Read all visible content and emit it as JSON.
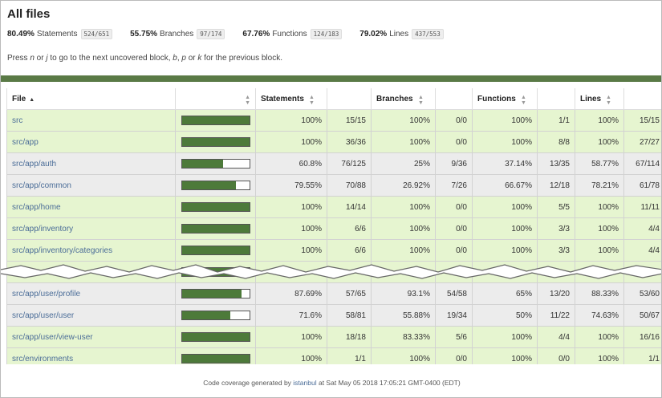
{
  "title": "All files",
  "summary": [
    {
      "pct": "80.49%",
      "label": "Statements",
      "fraction": "524/651"
    },
    {
      "pct": "55.75%",
      "label": "Branches",
      "fraction": "97/174"
    },
    {
      "pct": "67.76%",
      "label": "Functions",
      "fraction": "124/183"
    },
    {
      "pct": "79.02%",
      "label": "Lines",
      "fraction": "437/553"
    }
  ],
  "help": {
    "p1": "Press ",
    "k1": "n",
    "p2": " or ",
    "k2": "j",
    "p3": " to go to the next uncovered block, ",
    "k3": "b",
    "p4": ", ",
    "k4": "p",
    "p5": " or ",
    "k5": "k",
    "p6": " for the previous block."
  },
  "columns": {
    "file": "File",
    "statements": "Statements",
    "branches": "Branches",
    "functions": "Functions",
    "lines": "Lines"
  },
  "rows": [
    {
      "file": "src",
      "level": "high",
      "coverage": 1.0,
      "stmt_pct": "100%",
      "stmt_frac": "15/15",
      "br_pct": "100%",
      "br_frac": "0/0",
      "fn_pct": "100%",
      "fn_frac": "1/1",
      "ln_pct": "100%",
      "ln_frac": "15/15"
    },
    {
      "file": "src/app",
      "level": "high",
      "coverage": 1.0,
      "stmt_pct": "100%",
      "stmt_frac": "36/36",
      "br_pct": "100%",
      "br_frac": "0/0",
      "fn_pct": "100%",
      "fn_frac": "8/8",
      "ln_pct": "100%",
      "ln_frac": "27/27"
    },
    {
      "file": "src/app/auth",
      "level": "medium",
      "coverage": 0.608,
      "stmt_pct": "60.8%",
      "stmt_frac": "76/125",
      "br_pct": "25%",
      "br_frac": "9/36",
      "fn_pct": "37.14%",
      "fn_frac": "13/35",
      "ln_pct": "58.77%",
      "ln_frac": "67/114"
    },
    {
      "file": "src/app/common",
      "level": "medium",
      "coverage": 0.7955,
      "stmt_pct": "79.55%",
      "stmt_frac": "70/88",
      "br_pct": "26.92%",
      "br_frac": "7/26",
      "fn_pct": "66.67%",
      "fn_frac": "12/18",
      "ln_pct": "78.21%",
      "ln_frac": "61/78"
    },
    {
      "file": "src/app/home",
      "level": "high",
      "coverage": 1.0,
      "stmt_pct": "100%",
      "stmt_frac": "14/14",
      "br_pct": "100%",
      "br_frac": "0/0",
      "fn_pct": "100%",
      "fn_frac": "5/5",
      "ln_pct": "100%",
      "ln_frac": "11/11"
    },
    {
      "file": "src/app/inventory",
      "level": "high",
      "coverage": 1.0,
      "stmt_pct": "100%",
      "stmt_frac": "6/6",
      "br_pct": "100%",
      "br_frac": "0/0",
      "fn_pct": "100%",
      "fn_frac": "3/3",
      "ln_pct": "100%",
      "ln_frac": "4/4"
    },
    {
      "file": "src/app/inventory/categories",
      "level": "high",
      "coverage": 1.0,
      "stmt_pct": "100%",
      "stmt_frac": "6/6",
      "br_pct": "100%",
      "br_frac": "0/0",
      "fn_pct": "100%",
      "fn_frac": "3/3",
      "ln_pct": "100%",
      "ln_frac": "4/4"
    },
    {
      "file": "",
      "level": "high",
      "coverage": 1.0,
      "stmt_pct": "",
      "stmt_frac": "",
      "br_pct": "",
      "br_frac": "",
      "fn_pct": "",
      "fn_frac": "",
      "ln_pct": "",
      "ln_frac": ""
    },
    {
      "file": "src/app/user/profile",
      "level": "medium",
      "coverage": 0.8769,
      "stmt_pct": "87.69%",
      "stmt_frac": "57/65",
      "br_pct": "93.1%",
      "br_frac": "54/58",
      "fn_pct": "65%",
      "fn_frac": "13/20",
      "ln_pct": "88.33%",
      "ln_frac": "53/60"
    },
    {
      "file": "src/app/user/user",
      "level": "medium",
      "coverage": 0.716,
      "stmt_pct": "71.6%",
      "stmt_frac": "58/81",
      "br_pct": "55.88%",
      "br_frac": "19/34",
      "fn_pct": "50%",
      "fn_frac": "11/22",
      "ln_pct": "74.63%",
      "ln_frac": "50/67"
    },
    {
      "file": "src/app/user/view-user",
      "level": "high",
      "coverage": 1.0,
      "stmt_pct": "100%",
      "stmt_frac": "18/18",
      "br_pct": "83.33%",
      "br_frac": "5/6",
      "fn_pct": "100%",
      "fn_frac": "4/4",
      "ln_pct": "100%",
      "ln_frac": "16/16"
    },
    {
      "file": "src/environments",
      "level": "high",
      "coverage": 1.0,
      "stmt_pct": "100%",
      "stmt_frac": "1/1",
      "br_pct": "100%",
      "br_frac": "0/0",
      "fn_pct": "100%",
      "fn_frac": "0/0",
      "ln_pct": "100%",
      "ln_frac": "1/1"
    }
  ],
  "footer": {
    "prefix": "Code coverage generated by ",
    "link": "istanbul",
    "suffix": " at Sat May 05 2018 17:05:21 GMT-0400 (EDT)"
  }
}
